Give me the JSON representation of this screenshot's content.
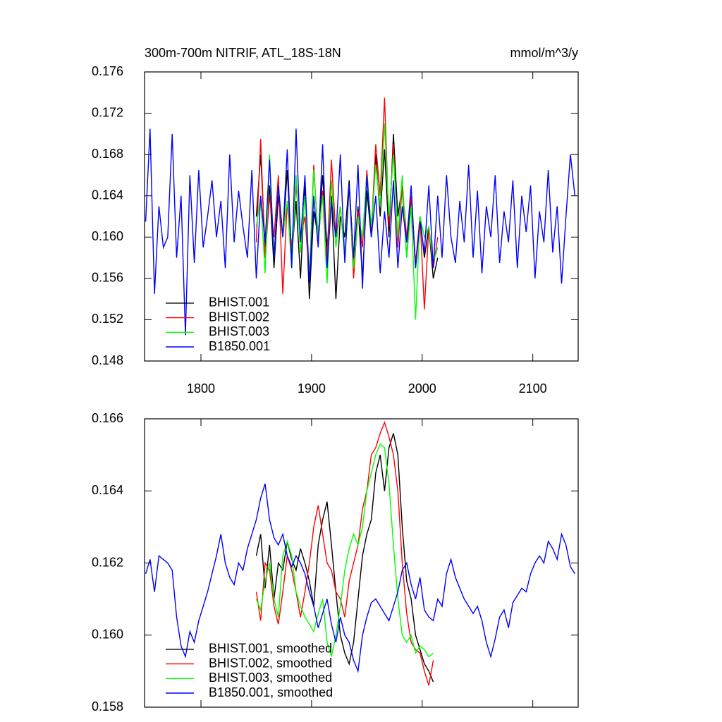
{
  "chart_data": [
    {
      "type": "line",
      "title": "300m-700m NITRIF, ATL_18S-18N",
      "units": "mmol/m^3/y",
      "xlim": [
        1749,
        2141
      ],
      "xticks": [
        1800,
        1900,
        2000,
        2100
      ],
      "show_xtick_labels": true,
      "ylim": [
        0.148,
        0.176
      ],
      "yticks": [
        0.148,
        0.152,
        0.156,
        {
          "value": 0.16,
          "label": "0.160"
        },
        0.164,
        0.168,
        0.172,
        0.176
      ],
      "legend": "lower left",
      "series": [
        {
          "name": "BHIST.001",
          "color": "#000000",
          "x": [
            1850,
            1854,
            1858,
            1862,
            1866,
            1870,
            1874,
            1878,
            1882,
            1886,
            1890,
            1894,
            1898,
            1902,
            1906,
            1910,
            1914,
            1918,
            1922,
            1926,
            1930,
            1934,
            1938,
            1942,
            1946,
            1950,
            1954,
            1958,
            1962,
            1966,
            1970,
            1974,
            1978,
            1982,
            1986,
            1990,
            1994,
            1998,
            2002,
            2006,
            2010,
            2014
          ],
          "values": [
            0.162,
            0.168,
            0.159,
            0.165,
            0.157,
            0.164,
            0.16,
            0.1665,
            0.158,
            0.1635,
            0.156,
            0.165,
            0.154,
            0.1625,
            0.16,
            0.166,
            0.159,
            0.164,
            0.154,
            0.162,
            0.16,
            0.1655,
            0.1575,
            0.163,
            0.156,
            0.1645,
            0.16,
            0.168,
            0.162,
            0.1685,
            0.16,
            0.17,
            0.162,
            0.165,
            0.158,
            0.164,
            0.157,
            0.162,
            0.158,
            0.161,
            0.156,
            0.158
          ]
        },
        {
          "name": "BHIST.002",
          "color": "#ff0000",
          "x": [
            1850,
            1854,
            1858,
            1862,
            1866,
            1870,
            1874,
            1878,
            1882,
            1886,
            1890,
            1894,
            1898,
            1902,
            1906,
            1910,
            1914,
            1918,
            1922,
            1926,
            1930,
            1934,
            1938,
            1942,
            1946,
            1950,
            1954,
            1958,
            1962,
            1966,
            1970,
            1974,
            1978,
            1982,
            1986,
            1990,
            1994,
            1998,
            2002,
            2006,
            2010,
            2014
          ],
          "values": [
            0.1595,
            0.1695,
            0.158,
            0.164,
            0.16,
            0.166,
            0.1545,
            0.1635,
            0.159,
            0.165,
            0.16,
            0.162,
            0.156,
            0.167,
            0.1595,
            0.1645,
            0.158,
            0.1675,
            0.16,
            0.163,
            0.158,
            0.165,
            0.156,
            0.1625,
            0.159,
            0.1665,
            0.1605,
            0.169,
            0.164,
            0.1735,
            0.161,
            0.169,
            0.159,
            0.165,
            0.16,
            0.164,
            0.1575,
            0.162,
            0.153,
            0.161,
            0.157,
            0.16
          ]
        },
        {
          "name": "BHIST.003",
          "color": "#00ff00",
          "x": [
            1850,
            1854,
            1858,
            1862,
            1866,
            1870,
            1874,
            1878,
            1882,
            1886,
            1890,
            1894,
            1898,
            1902,
            1906,
            1910,
            1914,
            1918,
            1922,
            1926,
            1930,
            1934,
            1938,
            1942,
            1946,
            1950,
            1954,
            1958,
            1962,
            1966,
            1970,
            1974,
            1978,
            1982,
            1986,
            1990,
            1994,
            1998,
            2002,
            2006,
            2010,
            2014
          ],
          "values": [
            0.161,
            0.164,
            0.1565,
            0.168,
            0.158,
            0.165,
            0.16,
            0.1635,
            0.157,
            0.166,
            0.1585,
            0.164,
            0.156,
            0.1665,
            0.16,
            0.164,
            0.1555,
            0.1655,
            0.159,
            0.163,
            0.158,
            0.165,
            0.157,
            0.162,
            0.16,
            0.166,
            0.161,
            0.167,
            0.163,
            0.171,
            0.162,
            0.168,
            0.16,
            0.166,
            0.158,
            0.163,
            0.152,
            0.162,
            0.16,
            0.161,
            0.1575,
            0.159
          ]
        },
        {
          "name": "B1850.001",
          "color": "#0000ff",
          "x": [
            1750,
            1754,
            1758,
            1762,
            1766,
            1770,
            1774,
            1778,
            1782,
            1786,
            1790,
            1794,
            1798,
            1802,
            1806,
            1810,
            1814,
            1818,
            1822,
            1826,
            1830,
            1834,
            1838,
            1842,
            1846,
            1850,
            1854,
            1858,
            1862,
            1866,
            1870,
            1874,
            1878,
            1882,
            1886,
            1890,
            1894,
            1898,
            1902,
            1906,
            1910,
            1914,
            1918,
            1922,
            1926,
            1930,
            1934,
            1938,
            1942,
            1946,
            1950,
            1954,
            1958,
            1962,
            1966,
            1970,
            1974,
            1978,
            1982,
            1986,
            1990,
            1994,
            1998,
            2002,
            2006,
            2010,
            2014,
            2018,
            2022,
            2026,
            2030,
            2034,
            2038,
            2042,
            2046,
            2050,
            2054,
            2058,
            2062,
            2066,
            2070,
            2074,
            2078,
            2082,
            2086,
            2090,
            2094,
            2098,
            2102,
            2106,
            2110,
            2114,
            2118,
            2122,
            2126,
            2130,
            2134,
            2138
          ],
          "values": [
            0.1615,
            0.1705,
            0.1545,
            0.163,
            0.159,
            0.16,
            0.17,
            0.158,
            0.164,
            0.1505,
            0.166,
            0.1575,
            0.1665,
            0.159,
            0.162,
            0.1655,
            0.16,
            0.1635,
            0.157,
            0.168,
            0.1595,
            0.1645,
            0.161,
            0.158,
            0.1665,
            0.156,
            0.164,
            0.1595,
            0.1675,
            0.158,
            0.165,
            0.16,
            0.1685,
            0.157,
            0.1705,
            0.1595,
            0.166,
            0.1555,
            0.164,
            0.159,
            0.169,
            0.157,
            0.1635,
            0.16,
            0.168,
            0.1575,
            0.165,
            0.158,
            0.167,
            0.155,
            0.166,
            0.16,
            0.164,
            0.1565,
            0.1625,
            0.158,
            0.1655,
            0.157,
            0.163,
            0.1595,
            0.165,
            0.157,
            0.1615,
            0.1585,
            0.165,
            0.157,
            0.164,
            0.158,
            0.166,
            0.16,
            0.1575,
            0.1635,
            0.1595,
            0.167,
            0.158,
            0.1645,
            0.1565,
            0.163,
            0.16,
            0.166,
            0.1575,
            0.1625,
            0.1595,
            0.1655,
            0.157,
            0.164,
            0.1605,
            0.165,
            0.156,
            0.1625,
            0.1595,
            0.1665,
            0.1585,
            0.163,
            0.1555,
            0.162,
            0.168,
            0.164
          ]
        }
      ]
    },
    {
      "type": "line",
      "xlim": [
        1749,
        2141
      ],
      "xticks": [
        1800,
        1900,
        2000,
        2100
      ],
      "show_xtick_labels": false,
      "ylim": [
        0.158,
        0.166
      ],
      "yticks": [
        0.158,
        {
          "value": 0.16,
          "label": "0.160"
        },
        0.162,
        0.164,
        0.166
      ],
      "legend": "lower left",
      "series": [
        {
          "name": "BHIST.001, smoothed",
          "color": "#000000",
          "x": [
            1850,
            1854,
            1858,
            1862,
            1866,
            1870,
            1874,
            1878,
            1882,
            1886,
            1890,
            1894,
            1898,
            1902,
            1906,
            1910,
            1914,
            1918,
            1922,
            1926,
            1930,
            1934,
            1938,
            1942,
            1946,
            1950,
            1954,
            1958,
            1962,
            1966,
            1970,
            1974,
            1978,
            1982,
            1986,
            1990,
            1994,
            1998,
            2002,
            2006,
            2010
          ],
          "values": [
            0.1622,
            0.1628,
            0.1613,
            0.1625,
            0.161,
            0.162,
            0.1618,
            0.1626,
            0.1621,
            0.1618,
            0.1624,
            0.162,
            0.1615,
            0.1608,
            0.1625,
            0.1632,
            0.1637,
            0.1625,
            0.1612,
            0.16,
            0.1595,
            0.1592,
            0.1598,
            0.161,
            0.1622,
            0.1628,
            0.1632,
            0.1645,
            0.165,
            0.164,
            0.1652,
            0.1656,
            0.165,
            0.163,
            0.1615,
            0.161,
            0.16,
            0.1596,
            0.1592,
            0.159,
            0.1587
          ]
        },
        {
          "name": "BHIST.002, smoothed",
          "color": "#ff0000",
          "x": [
            1850,
            1854,
            1858,
            1862,
            1866,
            1870,
            1874,
            1878,
            1882,
            1886,
            1890,
            1894,
            1898,
            1902,
            1906,
            1910,
            1914,
            1918,
            1922,
            1926,
            1930,
            1934,
            1938,
            1942,
            1946,
            1950,
            1954,
            1958,
            1962,
            1966,
            1970,
            1974,
            1978,
            1982,
            1986,
            1990,
            1994,
            1998,
            2002,
            2006,
            2010
          ],
          "values": [
            0.1612,
            0.1604,
            0.162,
            0.1618,
            0.1608,
            0.1603,
            0.1612,
            0.1622,
            0.1618,
            0.1612,
            0.1605,
            0.1612,
            0.162,
            0.163,
            0.1636,
            0.1628,
            0.162,
            0.1618,
            0.1612,
            0.161,
            0.1605,
            0.1615,
            0.162,
            0.1625,
            0.1635,
            0.164,
            0.165,
            0.1652,
            0.1656,
            0.1659,
            0.1655,
            0.165,
            0.164,
            0.162,
            0.1606,
            0.1598,
            0.1596,
            0.1595,
            0.159,
            0.1586,
            0.1593
          ]
        },
        {
          "name": "BHIST.003, smoothed",
          "color": "#00ff00",
          "x": [
            1850,
            1854,
            1858,
            1862,
            1866,
            1870,
            1874,
            1878,
            1882,
            1886,
            1890,
            1894,
            1898,
            1902,
            1906,
            1910,
            1914,
            1918,
            1922,
            1926,
            1930,
            1934,
            1938,
            1942,
            1946,
            1950,
            1954,
            1958,
            1962,
            1966,
            1970,
            1974,
            1978,
            1982,
            1986,
            1990,
            1994,
            1998,
            2002,
            2006,
            2010
          ],
          "values": [
            0.161,
            0.1607,
            0.1615,
            0.162,
            0.161,
            0.1605,
            0.1622,
            0.1626,
            0.1622,
            0.1612,
            0.1608,
            0.1605,
            0.1603,
            0.1601,
            0.1606,
            0.161,
            0.1598,
            0.1594,
            0.16,
            0.1608,
            0.1618,
            0.1624,
            0.1628,
            0.1625,
            0.163,
            0.164,
            0.1645,
            0.165,
            0.1653,
            0.1652,
            0.1642,
            0.1625,
            0.161,
            0.16,
            0.1598,
            0.16,
            0.1595,
            0.1597,
            0.1596,
            0.1594,
            0.1595
          ]
        },
        {
          "name": "B1850.001, smoothed",
          "color": "#0000ff",
          "x": [
            1750,
            1754,
            1758,
            1762,
            1766,
            1770,
            1774,
            1778,
            1782,
            1786,
            1790,
            1794,
            1798,
            1802,
            1806,
            1810,
            1814,
            1818,
            1822,
            1826,
            1830,
            1834,
            1838,
            1842,
            1846,
            1850,
            1854,
            1858,
            1862,
            1866,
            1870,
            1874,
            1878,
            1882,
            1886,
            1890,
            1894,
            1898,
            1902,
            1906,
            1910,
            1914,
            1918,
            1922,
            1926,
            1930,
            1934,
            1938,
            1942,
            1946,
            1950,
            1954,
            1958,
            1962,
            1966,
            1970,
            1974,
            1978,
            1982,
            1986,
            1990,
            1994,
            1998,
            2002,
            2006,
            2010,
            2014,
            2018,
            2022,
            2026,
            2030,
            2034,
            2038,
            2042,
            2046,
            2050,
            2054,
            2058,
            2062,
            2066,
            2070,
            2074,
            2078,
            2082,
            2086,
            2090,
            2094,
            2098,
            2102,
            2106,
            2110,
            2114,
            2118,
            2122,
            2126,
            2130,
            2134,
            2138
          ],
          "values": [
            0.1617,
            0.1621,
            0.1612,
            0.1622,
            0.1621,
            0.162,
            0.1618,
            0.1605,
            0.1597,
            0.1594,
            0.1601,
            0.1598,
            0.1604,
            0.1608,
            0.1612,
            0.1617,
            0.1622,
            0.1628,
            0.162,
            0.1616,
            0.1614,
            0.162,
            0.1618,
            0.1624,
            0.1628,
            0.1632,
            0.1638,
            0.1642,
            0.1632,
            0.1627,
            0.1625,
            0.1628,
            0.1622,
            0.1619,
            0.1622,
            0.162,
            0.1617,
            0.1612,
            0.1608,
            0.1602,
            0.1606,
            0.161,
            0.1603,
            0.1598,
            0.1605,
            0.16,
            0.1598,
            0.1593,
            0.159,
            0.16,
            0.1605,
            0.1609,
            0.161,
            0.1608,
            0.1606,
            0.1604,
            0.1608,
            0.1612,
            0.1618,
            0.162,
            0.1614,
            0.161,
            0.1616,
            0.1607,
            0.1605,
            0.1604,
            0.161,
            0.1608,
            0.1617,
            0.1621,
            0.1616,
            0.1613,
            0.161,
            0.1608,
            0.1606,
            0.1608,
            0.1604,
            0.1598,
            0.1594,
            0.1599,
            0.1605,
            0.1607,
            0.1602,
            0.1609,
            0.1611,
            0.1613,
            0.1612,
            0.1617,
            0.162,
            0.1622,
            0.162,
            0.1626,
            0.1624,
            0.1621,
            0.1628,
            0.1625,
            0.1619,
            0.1617
          ]
        }
      ]
    }
  ]
}
